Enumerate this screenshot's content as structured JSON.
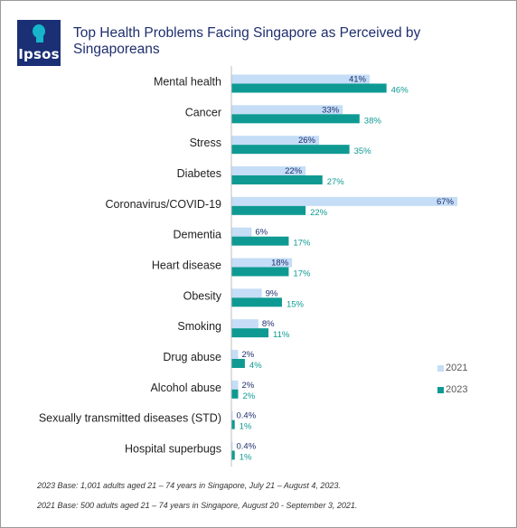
{
  "logo_text": "Ipsos",
  "title": "Top Health Problems Facing Singapore as Perceived by Singaporeans",
  "notes": {
    "base_2023": "2023 Base: 1,001 adults aged 21 – 74 years in Singapore, July 21 – August 4, 2023.",
    "base_2021": "2021 Base: 500 adults aged 21 – 74 years in Singapore, August 20 - September 3, 2021."
  },
  "legend": [
    "2021",
    "2023"
  ],
  "colors": {
    "series_2021": "#c5ddf6",
    "series_2023": "#0e9a92",
    "label_2021": "#1f2f6e",
    "label_2023": "#0e9a92",
    "axis": "#bfbfbf",
    "logo_bg": "#1b2f75",
    "logo_accent": "#16b5c9"
  },
  "chart_data": {
    "type": "bar",
    "orientation": "horizontal",
    "title": "Top Health Problems Facing Singapore as Perceived by Singaporeans",
    "categories": [
      "Mental health",
      "Cancer",
      "Stress",
      "Diabetes",
      "Coronavirus/COVID-19",
      "Dementia",
      "Heart disease",
      "Obesity",
      "Smoking",
      "Drug abuse",
      "Alcohol abuse",
      "Sexually transmitted diseases (STD)",
      "Hospital superbugs"
    ],
    "series": [
      {
        "name": "2021",
        "values": [
          41,
          33,
          26,
          22,
          67,
          6,
          18,
          9,
          8,
          2,
          2,
          0.4,
          0.4
        ],
        "labels": [
          "41%",
          "33%",
          "26%",
          "22%",
          "67%",
          "6%",
          "18%",
          "9%",
          "8%",
          "2%",
          "2%",
          "0.4%",
          "0.4%"
        ]
      },
      {
        "name": "2023",
        "values": [
          46,
          38,
          35,
          27,
          22,
          17,
          17,
          15,
          11,
          4,
          2,
          1,
          1
        ],
        "labels": [
          "46%",
          "38%",
          "35%",
          "27%",
          "22%",
          "17%",
          "17%",
          "15%",
          "11%",
          "4%",
          "2%",
          "1%",
          "1%"
        ]
      }
    ],
    "unit": "%",
    "xlim": [
      0,
      67
    ],
    "grid": false,
    "legend_position": "bottom-right"
  }
}
